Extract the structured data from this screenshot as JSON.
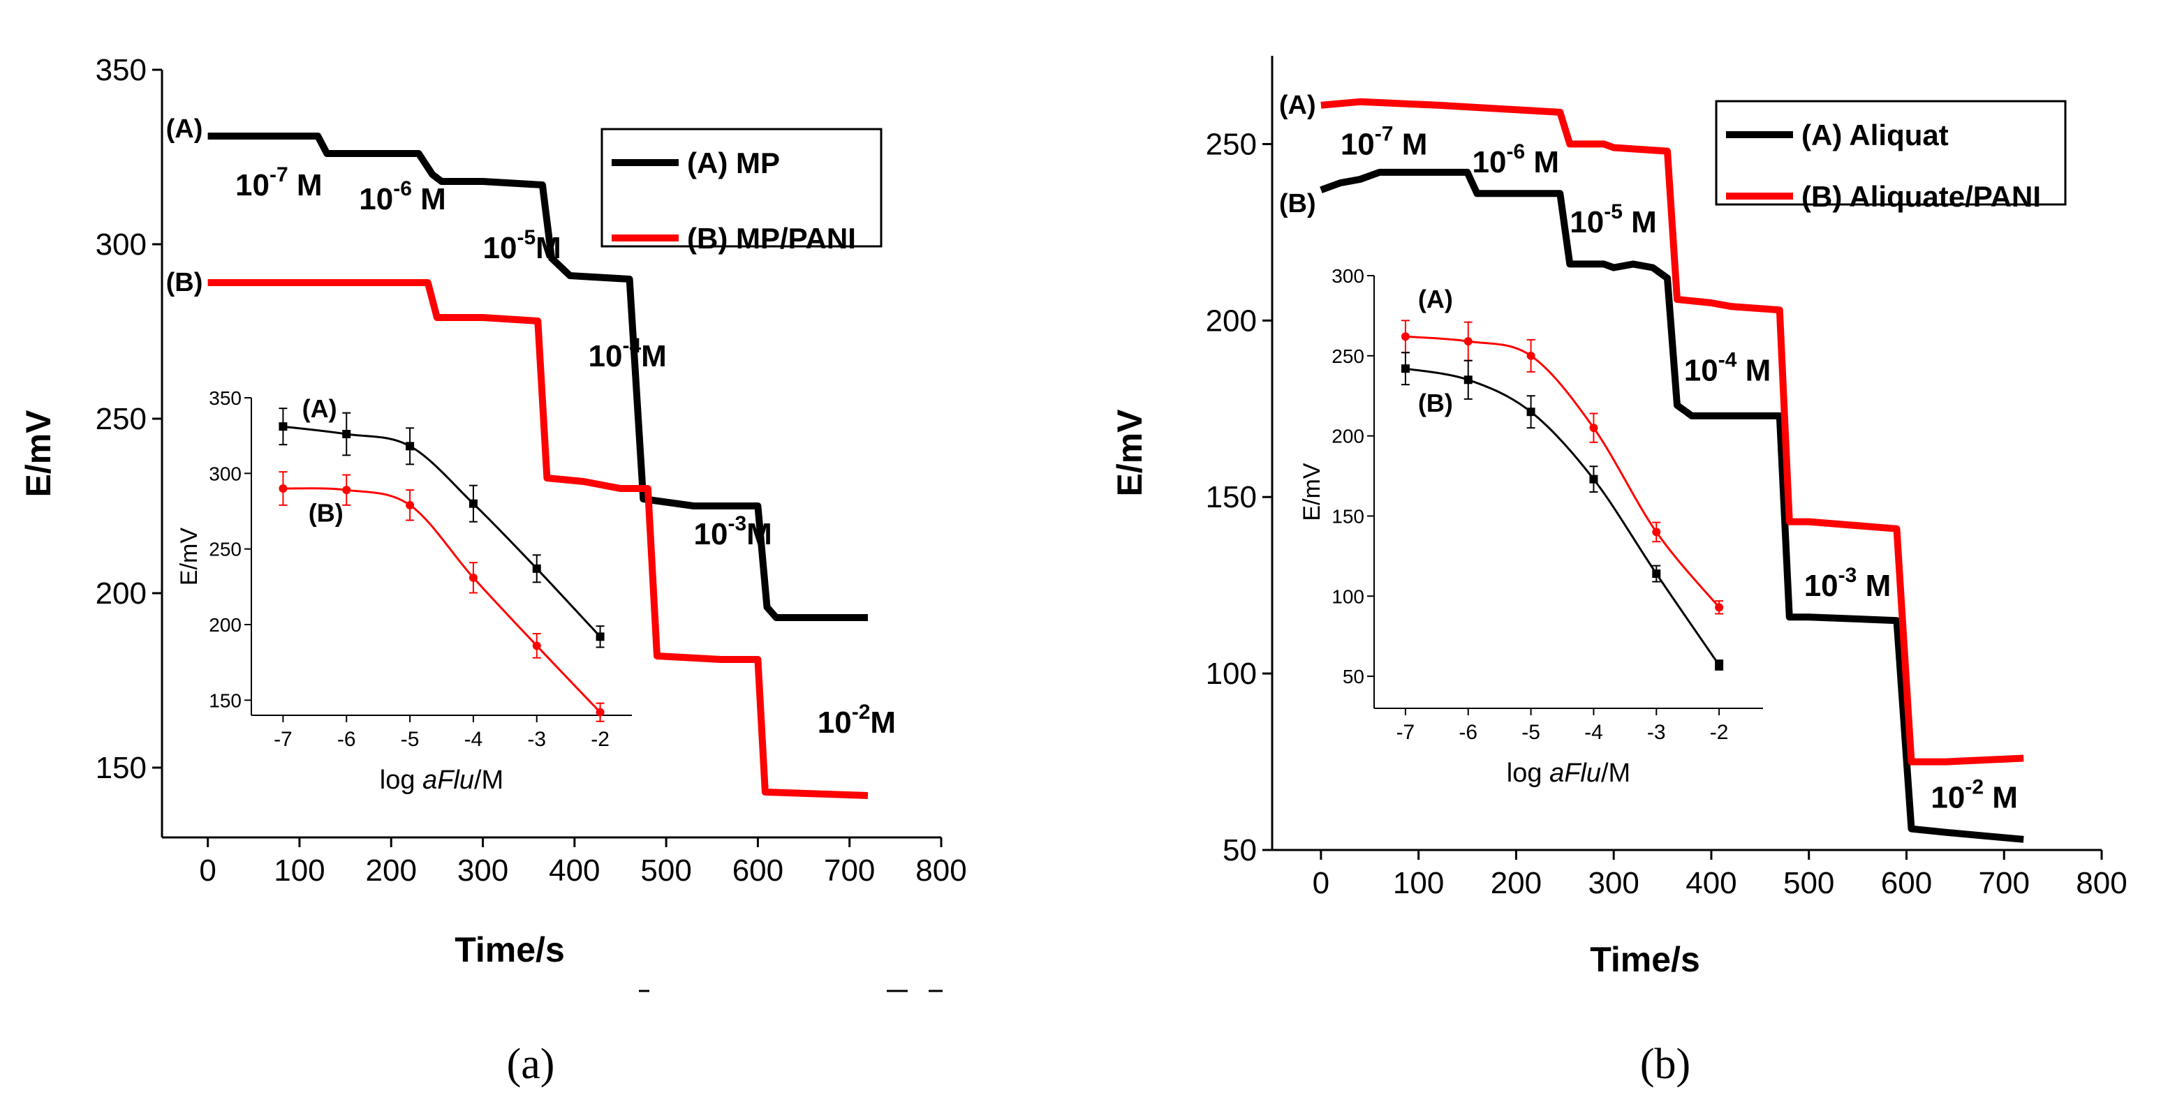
{
  "captions": {
    "a": "(a)",
    "b": "(b)"
  },
  "chart_data": [
    {
      "id": "a",
      "type": "line",
      "xlabel": "Time/s",
      "ylabel": "E/mV",
      "xlim": [
        -50,
        800
      ],
      "ylim": [
        130,
        350
      ],
      "xticks": [
        0,
        100,
        200,
        300,
        400,
        500,
        600,
        700,
        800
      ],
      "yticks": [
        150,
        200,
        250,
        300,
        350
      ],
      "legend": {
        "position": "top-right",
        "entries": [
          {
            "label": "(A) MP",
            "color": "#000000"
          },
          {
            "label": "(B) MP/PANI",
            "color": "#ff0000"
          }
        ]
      },
      "series": [
        {
          "name": "(A) MP",
          "tag": "(A)",
          "color": "#000000",
          "points": [
            [
              0,
              331
            ],
            [
              120,
              331
            ],
            [
              130,
              326
            ],
            [
              230,
              326
            ],
            [
              245,
              320
            ],
            [
              255,
              318
            ],
            [
              300,
              318
            ],
            [
              365,
              317
            ],
            [
              375,
              296
            ],
            [
              395,
              291
            ],
            [
              460,
              290
            ],
            [
              475,
              227
            ],
            [
              530,
              225
            ],
            [
              600,
              225
            ],
            [
              610,
              196
            ],
            [
              620,
              193
            ],
            [
              720,
              193
            ]
          ]
        },
        {
          "name": "(B) MP/PANI",
          "tag": "(B)",
          "color": "#ff0000",
          "points": [
            [
              0,
              289
            ],
            [
              120,
              289
            ],
            [
              200,
              289
            ],
            [
              240,
              289
            ],
            [
              250,
              279
            ],
            [
              300,
              279
            ],
            [
              360,
              278
            ],
            [
              370,
              233
            ],
            [
              410,
              232
            ],
            [
              450,
              230
            ],
            [
              480,
              230
            ],
            [
              490,
              182
            ],
            [
              560,
              181
            ],
            [
              600,
              181
            ],
            [
              608,
              143
            ],
            [
              720,
              142
            ]
          ]
        }
      ],
      "step_labels": [
        {
          "base": "10",
          "exp": "-7",
          "unit": " M",
          "x": 30,
          "y": 314
        },
        {
          "base": "10",
          "exp": "-6",
          "unit": " M",
          "x": 165,
          "y": 310
        },
        {
          "base": "10",
          "exp": "-5",
          "unit": "M",
          "x": 300,
          "y": 296
        },
        {
          "base": "10",
          "exp": "-4",
          "unit": "M",
          "x": 415,
          "y": 265
        },
        {
          "base": "10",
          "exp": "-3",
          "unit": "M",
          "x": 530,
          "y": 214
        },
        {
          "base": "10",
          "exp": "-2",
          "unit": "M",
          "x": 665,
          "y": 160
        }
      ],
      "inset": {
        "xlabel_prefix": "log ",
        "xlabel_italic": "aFlu",
        "xlabel_suffix": "/M",
        "ylabel": "E/mV",
        "xlim": [
          -7.5,
          -1.5
        ],
        "ylim": [
          140,
          350
        ],
        "xticks": [
          -7,
          -6,
          -5,
          -4,
          -3,
          -2
        ],
        "yticks": [
          150,
          200,
          250,
          300,
          350
        ],
        "series": [
          {
            "name": "(A)",
            "color": "#000000",
            "marker": "square",
            "x": [
              -7,
              -6,
              -5,
              -4,
              -3,
              -2
            ],
            "y": [
              331,
              326,
              318,
              280,
              237,
              192
            ],
            "err": [
              12,
              14,
              12,
              12,
              9,
              7
            ]
          },
          {
            "name": "(B)",
            "color": "#ff0000",
            "marker": "circle",
            "x": [
              -7,
              -6,
              -5,
              -4,
              -3,
              -2
            ],
            "y": [
              290,
              289,
              279,
              231,
              186,
              142
            ],
            "err": [
              11,
              10,
              10,
              10,
              8,
              6
            ]
          }
        ],
        "series_tags": [
          {
            "text": "(A)",
            "x": -6.7,
            "y": 337
          },
          {
            "text": "(B)",
            "x": -6.6,
            "y": 268
          }
        ]
      }
    },
    {
      "id": "b",
      "type": "line",
      "xlabel": "Time/s",
      "ylabel": "E/mV",
      "xlim": [
        -50,
        800
      ],
      "ylim": [
        50,
        275
      ],
      "xticks": [
        0,
        100,
        200,
        300,
        400,
        500,
        600,
        700,
        800
      ],
      "yticks": [
        50,
        100,
        150,
        200,
        250
      ],
      "legend": {
        "position": "top-right",
        "entries": [
          {
            "label": "(A) Aliquat",
            "color": "#000000"
          },
          {
            "label": "(B) Aliquate/PANI",
            "color": "#ff0000"
          }
        ]
      },
      "series": [
        {
          "name": "(A) Aliquat",
          "tag": "(B)",
          "color": "#000000",
          "points": [
            [
              0,
              237
            ],
            [
              20,
              239
            ],
            [
              40,
              240
            ],
            [
              60,
              242
            ],
            [
              150,
              242
            ],
            [
              160,
              236
            ],
            [
              245,
              236
            ],
            [
              255,
              216
            ],
            [
              290,
              216
            ],
            [
              300,
              215
            ],
            [
              320,
              216
            ],
            [
              340,
              215
            ],
            [
              355,
              212
            ],
            [
              365,
              176
            ],
            [
              380,
              173
            ],
            [
              470,
              173
            ],
            [
              480,
              116
            ],
            [
              500,
              116
            ],
            [
              590,
              115
            ],
            [
              605,
              56
            ],
            [
              640,
              55
            ],
            [
              680,
              54
            ],
            [
              720,
              53
            ]
          ]
        },
        {
          "name": "(B) Aliquate/PANI",
          "tag": "(A)",
          "color": "#ff0000",
          "points": [
            [
              0,
              261
            ],
            [
              40,
              262
            ],
            [
              120,
              261
            ],
            [
              245,
              259
            ],
            [
              255,
              250
            ],
            [
              290,
              250
            ],
            [
              300,
              249
            ],
            [
              355,
              248
            ],
            [
              365,
              206
            ],
            [
              400,
              205
            ],
            [
              420,
              204
            ],
            [
              470,
              203
            ],
            [
              480,
              143
            ],
            [
              500,
              143
            ],
            [
              590,
              141
            ],
            [
              605,
              75
            ],
            [
              640,
              75
            ],
            [
              720,
              76
            ]
          ]
        }
      ],
      "step_labels": [
        {
          "base": "10",
          "exp": "-7",
          "unit": " M",
          "x": 20,
          "y": 247
        },
        {
          "base": "10",
          "exp": "-6",
          "unit": " M",
          "x": 155,
          "y": 242
        },
        {
          "base": "10",
          "exp": "-5",
          "unit": " M",
          "x": 255,
          "y": 225
        },
        {
          "base": "10",
          "exp": "-4",
          "unit": " M",
          "x": 372,
          "y": 183
        },
        {
          "base": "10",
          "exp": "-3",
          "unit": " M",
          "x": 495,
          "y": 122
        },
        {
          "base": "10",
          "exp": "-2",
          "unit": " M",
          "x": 625,
          "y": 62
        }
      ],
      "inset": {
        "xlabel_prefix": "log ",
        "xlabel_italic": "aFlu",
        "xlabel_suffix": "/M",
        "ylabel": "E/mV",
        "xlim": [
          -7.5,
          -1.3
        ],
        "ylim": [
          30,
          300
        ],
        "xticks": [
          -7,
          -6,
          -5,
          -4,
          -3,
          -2
        ],
        "yticks": [
          50,
          100,
          150,
          200,
          250,
          300
        ],
        "series": [
          {
            "name": "(A)",
            "color": "#ff0000",
            "marker": "circle",
            "x": [
              -7,
              -6,
              -5,
              -4,
              -3,
              -2
            ],
            "y": [
              262,
              259,
              250,
              205,
              140,
              93
            ],
            "err": [
              10,
              12,
              10,
              9,
              6,
              4
            ]
          },
          {
            "name": "(B)",
            "color": "#000000",
            "marker": "square",
            "x": [
              -7,
              -6,
              -5,
              -4,
              -3,
              -2
            ],
            "y": [
              242,
              235,
              215,
              173,
              114,
              57
            ],
            "err": [
              10,
              12,
              10,
              8,
              5,
              3
            ]
          }
        ],
        "series_tags": [
          {
            "text": "(A)",
            "x": -6.8,
            "y": 280
          },
          {
            "text": "(B)",
            "x": -6.8,
            "y": 215
          }
        ]
      }
    }
  ]
}
